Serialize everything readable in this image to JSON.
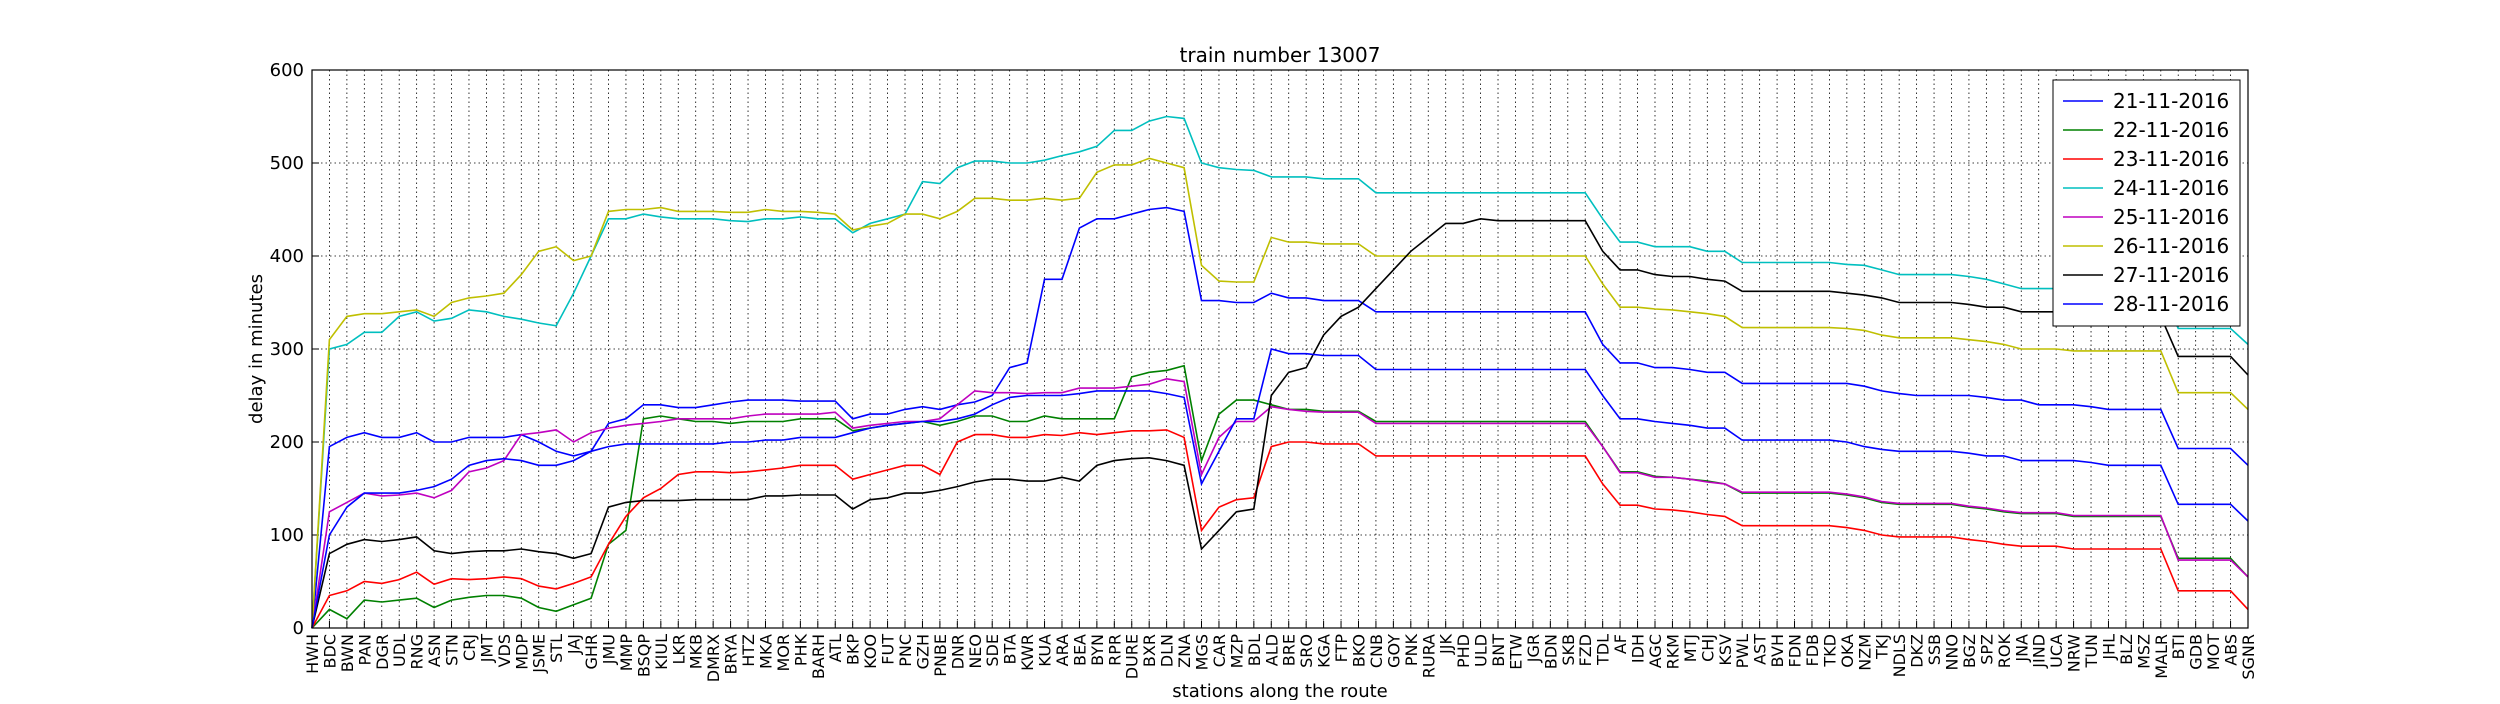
{
  "chart_data": {
    "type": "line",
    "title": "train number 13007",
    "xlabel": "stations along the route",
    "ylabel": "delay in minutes",
    "categories": [
      "HWH",
      "BDC",
      "BWN",
      "PAN",
      "DGR",
      "UDL",
      "RNG",
      "ASN",
      "STN",
      "CRJ",
      "JMT",
      "VDS",
      "MDP",
      "JSME",
      "STL",
      "JAJ",
      "GHR",
      "JMU",
      "MMP",
      "BSQP",
      "KIUL",
      "LKR",
      "MKB",
      "DMRX",
      "BRYA",
      "HTZ",
      "MKA",
      "MOR",
      "PHK",
      "BARH",
      "ATL",
      "BKP",
      "KOO",
      "FUT",
      "PNC",
      "GZH",
      "PNBE",
      "DNR",
      "NEO",
      "SDE",
      "BTA",
      "KWR",
      "KUA",
      "ARA",
      "BEA",
      "BYN",
      "RPR",
      "DURE",
      "BXR",
      "DLN",
      "ZNA",
      "MGS",
      "CAR",
      "MZP",
      "BDL",
      "ALD",
      "BRE",
      "SRO",
      "KGA",
      "FTP",
      "BKO",
      "CNB",
      "GOY",
      "PNK",
      "RURA",
      "JJK",
      "PHD",
      "ULD",
      "BNT",
      "ETW",
      "JGR",
      "BDN",
      "SKB",
      "FZD",
      "TDL",
      "AF",
      "IDH",
      "AGC",
      "RKM",
      "MTJ",
      "CHJ",
      "KSV",
      "PWL",
      "AST",
      "BVH",
      "FDN",
      "FDB",
      "TKD",
      "OKA",
      "NZM",
      "TKJ",
      "NDLS",
      "DKZ",
      "SSB",
      "NNO",
      "BGZ",
      "SPZ",
      "ROK",
      "JNA",
      "JIND",
      "UCA",
      "NRW",
      "TUN",
      "JHL",
      "BLZ",
      "MSZ",
      "MALR",
      "BTI",
      "GDB",
      "MOT",
      "ABS",
      "SGNR"
    ],
    "series": [
      {
        "name": "21-11-2016",
        "color": "#0000ff",
        "values": [
          0,
          195,
          205,
          210,
          205,
          205,
          210,
          200,
          200,
          205,
          205,
          205,
          208,
          200,
          190,
          185,
          190,
          220,
          225,
          240,
          240,
          237,
          237,
          240,
          243,
          245,
          245,
          245,
          244,
          244,
          244,
          225,
          230,
          230,
          235,
          238,
          235,
          240,
          243,
          250,
          280,
          285,
          375,
          375,
          430,
          440,
          440,
          445,
          450,
          452,
          448,
          352,
          352,
          350,
          350,
          360,
          355,
          355,
          352,
          352,
          352,
          340,
          340,
          340,
          340,
          340,
          340,
          340,
          340,
          340,
          340,
          340,
          340,
          340,
          305,
          285,
          285,
          280,
          280,
          278,
          275,
          275,
          263,
          263,
          263,
          263,
          263,
          263,
          263,
          260,
          255,
          252,
          250,
          250,
          250,
          250,
          248,
          245,
          245,
          240,
          240,
          240,
          238,
          235,
          235,
          235,
          235,
          193,
          193,
          193,
          193,
          175
        ]
      },
      {
        "name": "22-11-2016",
        "color": "#008000",
        "values": [
          0,
          20,
          10,
          30,
          28,
          30,
          32,
          22,
          30,
          33,
          35,
          35,
          32,
          22,
          18,
          25,
          32,
          90,
          105,
          225,
          228,
          225,
          222,
          222,
          220,
          222,
          222,
          222,
          225,
          225,
          225,
          212,
          215,
          218,
          220,
          222,
          218,
          222,
          228,
          228,
          222,
          222,
          228,
          225,
          225,
          225,
          225,
          270,
          275,
          277,
          282,
          180,
          230,
          245,
          245,
          240,
          235,
          235,
          233,
          233,
          233,
          222,
          222,
          222,
          222,
          222,
          222,
          222,
          222,
          222,
          222,
          222,
          222,
          222,
          195,
          168,
          168,
          163,
          162,
          160,
          158,
          155,
          145,
          145,
          145,
          145,
          145,
          145,
          143,
          140,
          135,
          133,
          133,
          133,
          133,
          130,
          128,
          125,
          123,
          123,
          123,
          120,
          120,
          120,
          120,
          120,
          120,
          75,
          75,
          75,
          75,
          55
        ]
      },
      {
        "name": "23-11-2016",
        "color": "#ff0000",
        "values": [
          0,
          35,
          40,
          50,
          48,
          52,
          60,
          47,
          53,
          52,
          53,
          55,
          53,
          45,
          42,
          48,
          55,
          90,
          120,
          140,
          150,
          165,
          168,
          168,
          167,
          168,
          170,
          172,
          175,
          175,
          175,
          160,
          165,
          170,
          175,
          175,
          165,
          200,
          208,
          208,
          205,
          205,
          208,
          207,
          210,
          208,
          210,
          212,
          212,
          213,
          205,
          105,
          130,
          138,
          140,
          195,
          200,
          200,
          198,
          198,
          198,
          185,
          185,
          185,
          185,
          185,
          185,
          185,
          185,
          185,
          185,
          185,
          185,
          185,
          155,
          132,
          132,
          128,
          127,
          125,
          122,
          120,
          110,
          110,
          110,
          110,
          110,
          110,
          108,
          105,
          100,
          98,
          98,
          98,
          98,
          95,
          93,
          90,
          88,
          88,
          88,
          85,
          85,
          85,
          85,
          85,
          85,
          40,
          40,
          40,
          40,
          20
        ]
      },
      {
        "name": "24-11-2016",
        "color": "#00bfbf",
        "values": [
          0,
          300,
          305,
          318,
          318,
          335,
          340,
          330,
          333,
          342,
          340,
          335,
          332,
          328,
          325,
          360,
          400,
          440,
          440,
          445,
          442,
          440,
          440,
          440,
          438,
          437,
          440,
          440,
          442,
          440,
          440,
          425,
          435,
          440,
          445,
          480,
          478,
          495,
          502,
          502,
          500,
          500,
          503,
          508,
          512,
          518,
          535,
          535,
          545,
          550,
          548,
          500,
          495,
          493,
          492,
          485,
          485,
          485,
          483,
          483,
          483,
          468,
          468,
          468,
          468,
          468,
          468,
          468,
          468,
          468,
          468,
          468,
          468,
          468,
          440,
          415,
          415,
          410,
          410,
          410,
          405,
          405,
          393,
          393,
          393,
          393,
          393,
          393,
          391,
          390,
          385,
          380,
          380,
          380,
          380,
          378,
          375,
          370,
          365,
          365,
          365,
          365,
          365,
          365,
          365,
          365,
          365,
          322,
          322,
          322,
          322,
          305
        ]
      },
      {
        "name": "25-11-2016",
        "color": "#bf00bf",
        "values": [
          0,
          125,
          135,
          145,
          142,
          143,
          145,
          140,
          148,
          168,
          172,
          180,
          208,
          210,
          213,
          200,
          210,
          215,
          218,
          220,
          222,
          225,
          225,
          225,
          225,
          228,
          230,
          230,
          230,
          230,
          232,
          215,
          218,
          220,
          222,
          222,
          225,
          240,
          255,
          253,
          253,
          252,
          253,
          253,
          258,
          258,
          258,
          260,
          262,
          268,
          265,
          165,
          205,
          222,
          222,
          238,
          235,
          233,
          232,
          232,
          232,
          220,
          220,
          220,
          220,
          220,
          220,
          220,
          220,
          220,
          220,
          220,
          220,
          220,
          195,
          167,
          167,
          162,
          162,
          160,
          157,
          155,
          146,
          146,
          146,
          146,
          146,
          146,
          144,
          141,
          136,
          134,
          134,
          134,
          134,
          131,
          129,
          126,
          124,
          124,
          124,
          121,
          121,
          121,
          121,
          121,
          121,
          73,
          73,
          73,
          73,
          55
        ]
      },
      {
        "name": "26-11-2016",
        "color": "#bfbf00",
        "values": [
          0,
          310,
          335,
          338,
          338,
          340,
          342,
          335,
          350,
          355,
          357,
          360,
          380,
          405,
          410,
          395,
          400,
          448,
          450,
          450,
          452,
          448,
          448,
          448,
          447,
          447,
          450,
          448,
          448,
          447,
          445,
          428,
          432,
          435,
          445,
          445,
          440,
          448,
          462,
          462,
          460,
          460,
          462,
          460,
          462,
          490,
          498,
          498,
          505,
          500,
          495,
          390,
          373,
          372,
          372,
          420,
          415,
          415,
          413,
          413,
          413,
          400,
          400,
          400,
          400,
          400,
          400,
          400,
          400,
          400,
          400,
          400,
          400,
          400,
          370,
          345,
          345,
          343,
          342,
          340,
          338,
          335,
          323,
          323,
          323,
          323,
          323,
          323,
          322,
          320,
          315,
          312,
          312,
          312,
          312,
          310,
          308,
          305,
          300,
          300,
          300,
          298,
          298,
          298,
          298,
          298,
          298,
          253,
          253,
          253,
          253,
          235
        ]
      },
      {
        "name": "27-11-2016",
        "color": "#000000",
        "values": [
          0,
          80,
          90,
          95,
          93,
          95,
          98,
          83,
          80,
          82,
          83,
          83,
          85,
          82,
          80,
          75,
          80,
          130,
          135,
          137,
          137,
          137,
          138,
          138,
          138,
          138,
          142,
          142,
          143,
          143,
          143,
          128,
          138,
          140,
          145,
          145,
          148,
          152,
          157,
          160,
          160,
          158,
          158,
          162,
          158,
          175,
          180,
          182,
          183,
          180,
          175,
          85,
          105,
          125,
          128,
          250,
          275,
          280,
          315,
          335,
          345,
          365,
          385,
          405,
          420,
          435,
          435,
          440,
          438,
          438,
          438,
          438,
          438,
          438,
          405,
          385,
          385,
          380,
          378,
          378,
          375,
          373,
          362,
          362,
          362,
          362,
          362,
          362,
          360,
          358,
          355,
          350,
          350,
          350,
          350,
          348,
          345,
          345,
          340,
          340,
          340,
          340,
          340,
          338,
          338,
          335,
          335,
          292,
          292,
          292,
          292,
          272
        ]
      },
      {
        "name": "28-11-2016",
        "color": "#0000ff",
        "values": [
          0,
          100,
          130,
          145,
          145,
          145,
          148,
          152,
          160,
          175,
          180,
          182,
          180,
          175,
          175,
          180,
          190,
          195,
          198,
          198,
          198,
          198,
          198,
          198,
          200,
          200,
          202,
          202,
          205,
          205,
          205,
          210,
          215,
          218,
          220,
          222,
          222,
          225,
          230,
          240,
          248,
          250,
          250,
          250,
          252,
          255,
          255,
          255,
          255,
          252,
          248,
          155,
          190,
          225,
          225,
          300,
          295,
          295,
          293,
          293,
          293,
          278,
          278,
          278,
          278,
          278,
          278,
          278,
          278,
          278,
          278,
          278,
          278,
          278,
          250,
          225,
          225,
          222,
          220,
          218,
          215,
          215,
          202,
          202,
          202,
          202,
          202,
          202,
          200,
          195,
          192,
          190,
          190,
          190,
          190,
          188,
          185,
          185,
          180,
          180,
          180,
          180,
          178,
          175,
          175,
          175,
          175,
          133,
          133,
          133,
          133,
          115
        ]
      }
    ],
    "ylim": [
      0,
      600
    ],
    "yticks": [
      0,
      100,
      200,
      300,
      400,
      500,
      600
    ],
    "grid": true,
    "legend": "upper right"
  }
}
